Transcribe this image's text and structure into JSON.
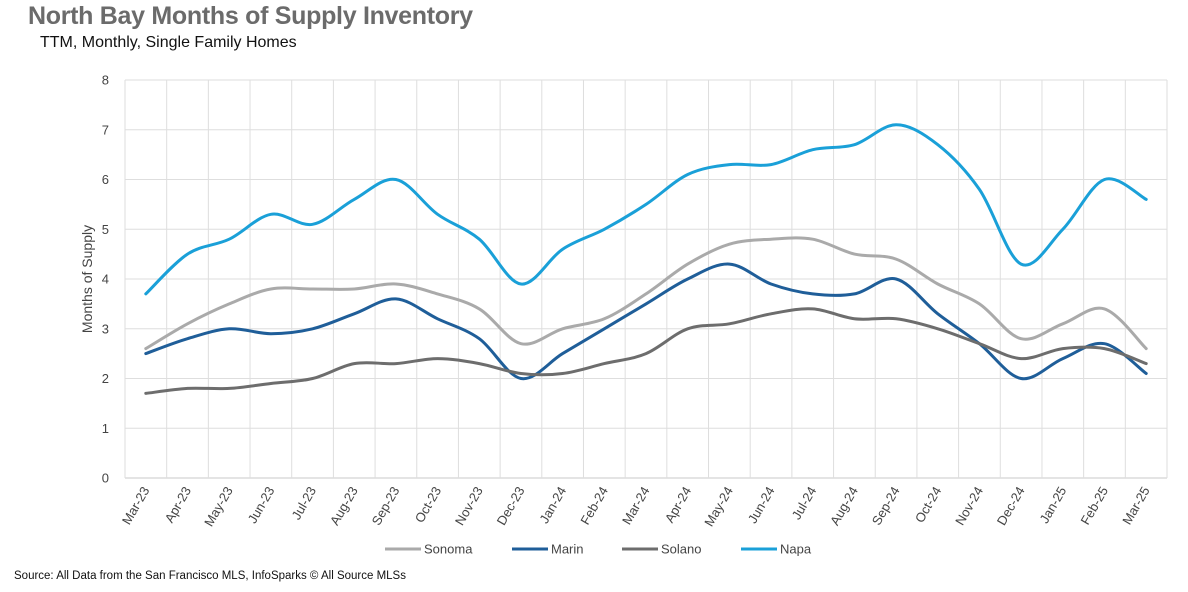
{
  "title": "North Bay Months of Supply Inventory",
  "subtitle": "TTM, Monthly, Single Family Homes",
  "source": "Source: All Data from the San Francisco MLS, InfoSparks © All Source MLSs",
  "chart_data": {
    "type": "line",
    "ylabel": "Months of Supply",
    "ylim": [
      0,
      8
    ],
    "yticks": [
      "0",
      "1",
      "2",
      "3",
      "4",
      "5",
      "6",
      "7",
      "8"
    ],
    "grid": true,
    "legend": "bottom",
    "categories": [
      "Mar-23",
      "Apr-23",
      "May-23",
      "Jun-23",
      "Jul-23",
      "Aug-23",
      "Sep-23",
      "Oct-23",
      "Nov-23",
      "Dec-23",
      "Jan-24",
      "Feb-24",
      "Mar-24",
      "Apr-24",
      "May-24",
      "Jun-24",
      "Jul-24",
      "Aug-24",
      "Sep-24",
      "Oct-24",
      "Nov-24",
      "Dec-24",
      "Jan-25",
      "Feb-25",
      "Mar-25"
    ],
    "series": [
      {
        "name": "Sonoma",
        "color": "#aaaaaa",
        "values": [
          2.6,
          3.1,
          3.5,
          3.8,
          3.8,
          3.8,
          3.9,
          3.7,
          3.4,
          2.7,
          3.0,
          3.2,
          3.7,
          4.3,
          4.7,
          4.8,
          4.8,
          4.5,
          4.4,
          3.9,
          3.5,
          2.8,
          3.1,
          3.4,
          2.6
        ]
      },
      {
        "name": "Marin",
        "color": "#1f5e99",
        "values": [
          2.5,
          2.8,
          3.0,
          2.9,
          3.0,
          3.3,
          3.6,
          3.2,
          2.8,
          2.0,
          2.5,
          3.0,
          3.5,
          4.0,
          4.3,
          3.9,
          3.7,
          3.7,
          4.0,
          3.3,
          2.7,
          2.0,
          2.4,
          2.7,
          2.1
        ]
      },
      {
        "name": "Solano",
        "color": "#6d6d6d",
        "values": [
          1.7,
          1.8,
          1.8,
          1.9,
          2.0,
          2.3,
          2.3,
          2.4,
          2.3,
          2.1,
          2.1,
          2.3,
          2.5,
          3.0,
          3.1,
          3.3,
          3.4,
          3.2,
          3.2,
          3.0,
          2.7,
          2.4,
          2.6,
          2.6,
          2.3
        ]
      },
      {
        "name": "Napa",
        "color": "#1aa0d8",
        "values": [
          3.7,
          4.5,
          4.8,
          5.3,
          5.1,
          5.6,
          6.0,
          5.3,
          4.8,
          3.9,
          4.6,
          5.0,
          5.5,
          6.1,
          6.3,
          6.3,
          6.6,
          6.7,
          7.1,
          6.7,
          5.8,
          4.3,
          5.0,
          6.0,
          5.6
        ]
      }
    ]
  }
}
